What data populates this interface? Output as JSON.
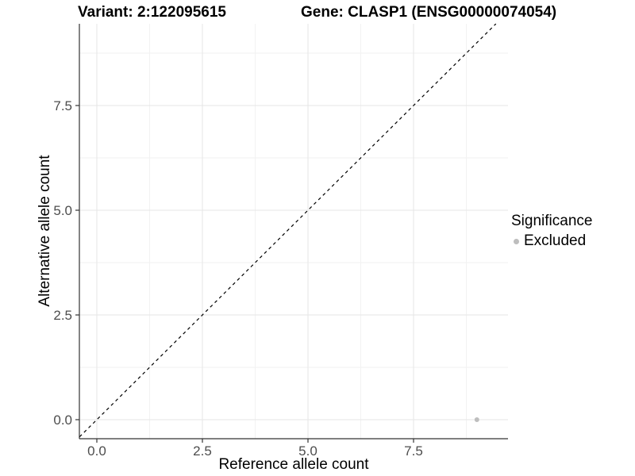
{
  "titles": {
    "variant": "Variant: 2:122095615",
    "gene": "Gene: CLASP1 (ENSG00000074054)"
  },
  "chart_data": {
    "type": "scatter",
    "title_left": "Variant: 2:122095615",
    "title_right": "Gene: CLASP1 (ENSG00000074054)",
    "xlabel": "Reference allele count",
    "ylabel": "Alternative allele count",
    "x_ticks": [
      0.0,
      2.5,
      5.0,
      7.5
    ],
    "x_tick_labels": [
      "0.0",
      "2.5",
      "5.0",
      "7.5"
    ],
    "y_ticks": [
      0.0,
      2.5,
      5.0,
      7.5
    ],
    "y_tick_labels": [
      "0.0",
      "2.5",
      "5.0",
      "7.5"
    ],
    "x_minor_ticks": [
      1.25,
      3.75,
      6.25,
      8.75
    ],
    "y_minor_ticks": [
      1.25,
      3.75,
      6.25,
      8.75
    ],
    "xlim": [
      -0.41,
      9.74
    ],
    "ylim": [
      -0.45,
      9.45
    ],
    "grid": true,
    "points": [
      {
        "x": 9,
        "y": 0,
        "series": "Excluded"
      }
    ],
    "reference_line": {
      "kind": "identity y=x",
      "style": "dashed",
      "span": [
        -0.41,
        9.45
      ]
    },
    "legend": {
      "title": "Significance",
      "position": "right",
      "entries": [
        {
          "label": "Excluded",
          "color": "#bebebe"
        }
      ]
    }
  },
  "colors": {
    "background": "#ffffff",
    "grid_major": "#e6e6e6",
    "grid_minor": "#f2f2f2",
    "axis_line": "#333333",
    "tick_mark": "#333333",
    "tick_label": "#4d4d4d",
    "point": "#bebebe",
    "reference_line": "#000000"
  }
}
